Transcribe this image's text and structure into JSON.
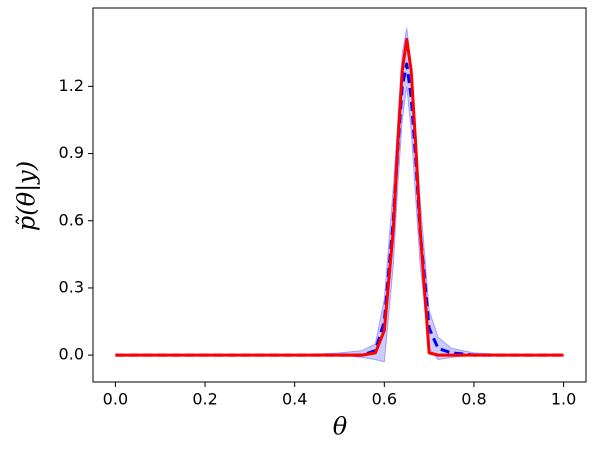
{
  "chart_data": {
    "type": "line",
    "xlabel": "θ",
    "ylabel": "p̃(θ|y)",
    "x": [
      0.0,
      0.1,
      0.2,
      0.3,
      0.4,
      0.5,
      0.55,
      0.58,
      0.6,
      0.62,
      0.63,
      0.64,
      0.65,
      0.66,
      0.67,
      0.68,
      0.7,
      0.72,
      0.75,
      0.8,
      0.9,
      1.0
    ],
    "band": {
      "color": "#0000ff",
      "lower": [
        0,
        0,
        0,
        0,
        0,
        0,
        -0.01,
        -0.02,
        -0.03,
        0.4,
        0.75,
        1.05,
        1.2,
        1.0,
        0.7,
        0.4,
        0.03,
        -0.02,
        -0.01,
        0,
        0,
        0
      ],
      "upper": [
        0,
        0,
        0,
        0,
        0,
        0.01,
        0.02,
        0.05,
        0.25,
        0.75,
        1.05,
        1.35,
        1.46,
        1.3,
        1.0,
        0.7,
        0.2,
        0.08,
        0.03,
        0.01,
        0,
        0
      ]
    },
    "series": [
      {
        "color": "#0000ff",
        "dashed": true,
        "values": [
          0,
          0,
          0,
          0,
          0,
          0,
          0,
          0.02,
          0.15,
          0.6,
          0.92,
          1.2,
          1.3,
          1.15,
          0.88,
          0.55,
          0.12,
          0.03,
          0.01,
          0,
          0,
          0
        ]
      },
      {
        "color": "#ff0000",
        "dashed": false,
        "values": [
          0,
          0,
          0,
          0,
          0,
          0,
          0,
          0.01,
          0.11,
          0.56,
          0.94,
          1.27,
          1.41,
          1.27,
          0.94,
          0.56,
          0.01,
          0,
          0,
          0,
          0,
          0
        ]
      }
    ],
    "xlim": [
      -0.05,
      1.05
    ],
    "ylim": [
      -0.12,
      1.55
    ],
    "xticks": [
      {
        "value": 0,
        "label": "0.0"
      },
      0.2,
      0.4,
      0.6,
      0.8,
      {
        "value": 1,
        "label": "1.0"
      }
    ],
    "yticks": [
      {
        "value": 0,
        "label": "0.0"
      },
      0.3,
      0.6,
      0.9,
      1.2
    ]
  }
}
